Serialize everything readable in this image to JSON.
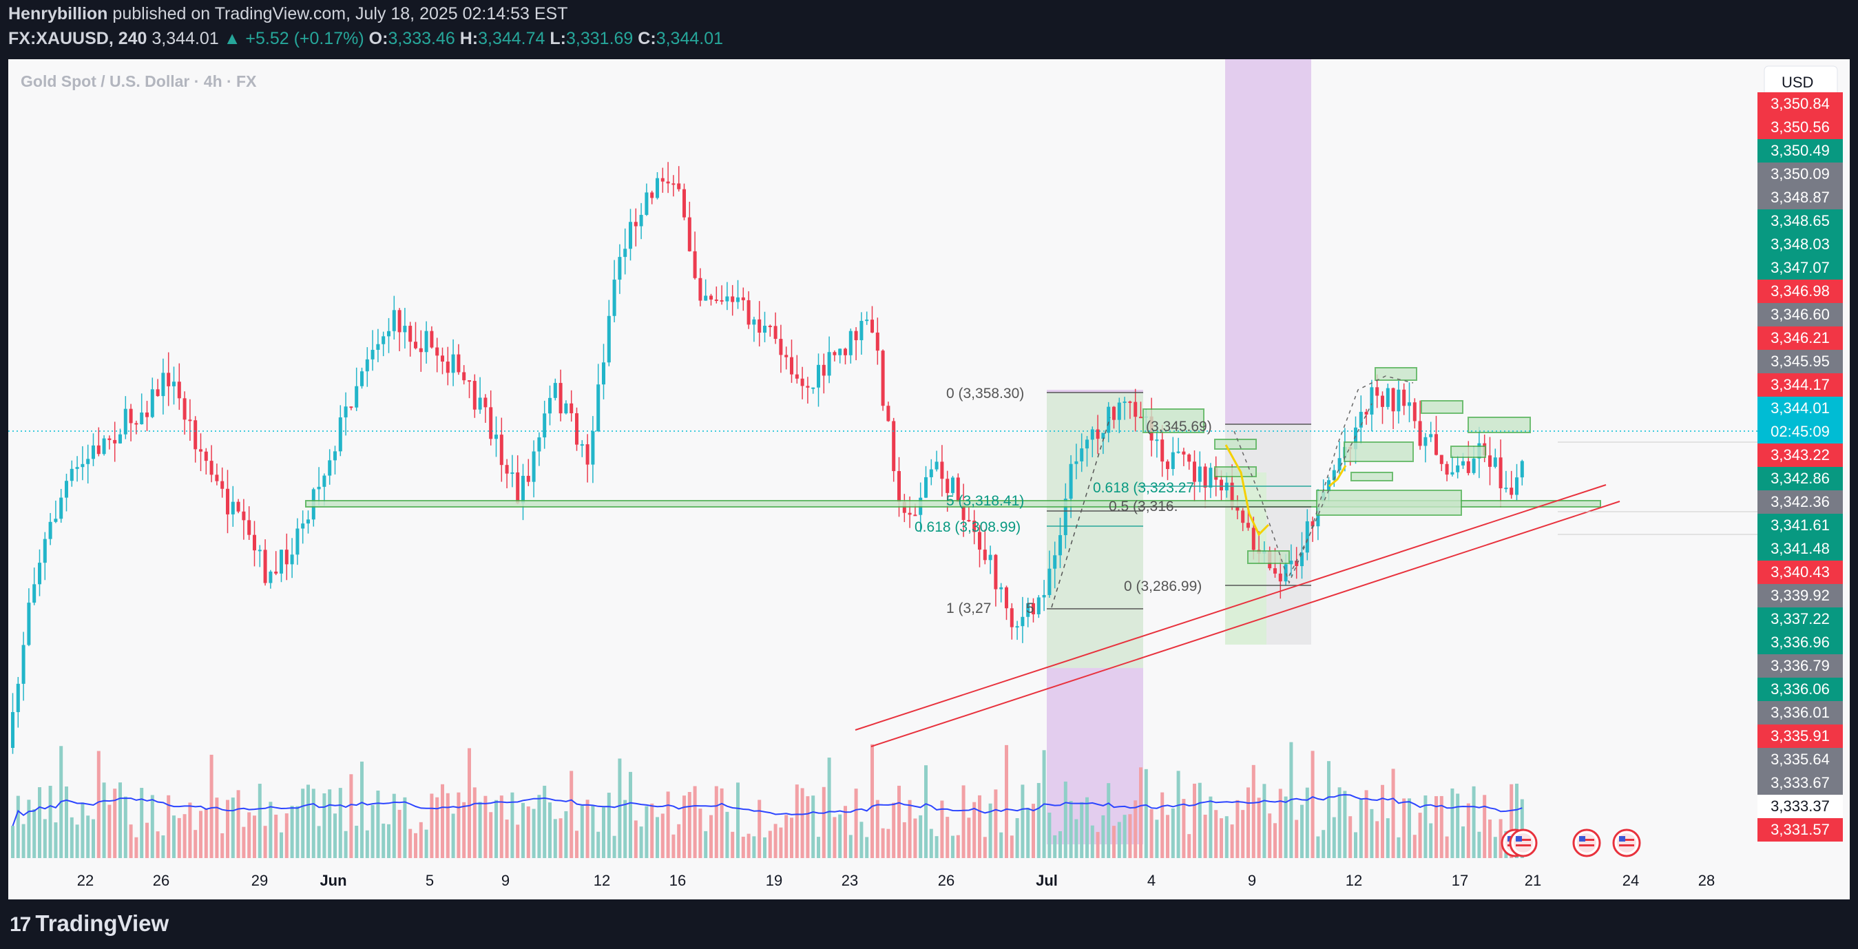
{
  "header": {
    "author": "Henrybillion",
    "published_text": "published on TradingView.com, July 18, 2025 02:14:53 EST",
    "symbol": "FX:XAUUSD, 240",
    "last": "3,344.01",
    "change": "▲ +5.52 (+0.17%)",
    "o_label": "O:",
    "o": "3,333.46",
    "h_label": "H:",
    "h": "3,344.74",
    "l_label": "L:",
    "l": "3,331.69",
    "c_label": "C:",
    "c": "3,344.01"
  },
  "chart": {
    "title": "Gold Spot / U.S. Dollar · 4h · FX",
    "currency_button": "USD",
    "colors": {
      "up": "#22b5c9",
      "down": "#ec3b4f",
      "vol_up": "#8fcfc7",
      "vol_down": "#f2a0a5",
      "ma": "#2b44ff",
      "zone": "#4caf50",
      "purple": "#e3cdee",
      "trend": "#e8323d"
    },
    "x_ticks": [
      {
        "label": "22",
        "bold": false
      },
      {
        "label": "26",
        "bold": false
      },
      {
        "label": "29",
        "bold": false
      },
      {
        "label": "Jun",
        "bold": true
      },
      {
        "label": "5",
        "bold": false
      },
      {
        "label": "9",
        "bold": false
      },
      {
        "label": "12",
        "bold": false
      },
      {
        "label": "16",
        "bold": false
      },
      {
        "label": "19",
        "bold": false
      },
      {
        "label": "23",
        "bold": false
      },
      {
        "label": "26",
        "bold": false
      },
      {
        "label": "Jul",
        "bold": true
      },
      {
        "label": "4",
        "bold": false
      },
      {
        "label": "9",
        "bold": false
      },
      {
        "label": "12",
        "bold": false
      },
      {
        "label": "17",
        "bold": false
      },
      {
        "label": "21",
        "bold": false
      },
      {
        "label": "24",
        "bold": false
      },
      {
        "label": "28",
        "bold": false
      }
    ],
    "price_labels": [
      {
        "text": "3,350.84",
        "color": "#f23645"
      },
      {
        "text": "3,350.56",
        "color": "#f23645"
      },
      {
        "text": "3,350.49",
        "color": "#089981"
      },
      {
        "text": "3,350.09",
        "color": "#787b86"
      },
      {
        "text": "3,348.87",
        "color": "#787b86"
      },
      {
        "text": "3,348.65",
        "color": "#089981"
      },
      {
        "text": "3,348.03",
        "color": "#089981"
      },
      {
        "text": "3,347.07",
        "color": "#089981"
      },
      {
        "text": "3,346.98",
        "color": "#f23645"
      },
      {
        "text": "3,346.60",
        "color": "#787b86"
      },
      {
        "text": "3,346.21",
        "color": "#f23645"
      },
      {
        "text": "3,345.95",
        "color": "#787b86"
      },
      {
        "text": "3,344.17",
        "color": "#f23645"
      },
      {
        "text": "3,344.01",
        "color": "#00bcd4"
      },
      {
        "text": "02:45:09",
        "color": "#00bcd4"
      },
      {
        "text": "3,343.22",
        "color": "#f23645"
      },
      {
        "text": "3,342.86",
        "color": "#089981"
      },
      {
        "text": "3,342.36",
        "color": "#787b86"
      },
      {
        "text": "3,341.61",
        "color": "#089981"
      },
      {
        "text": "3,341.48",
        "color": "#089981"
      },
      {
        "text": "3,340.43",
        "color": "#f23645"
      },
      {
        "text": "3,339.92",
        "color": "#787b86"
      },
      {
        "text": "3,337.22",
        "color": "#089981"
      },
      {
        "text": "3,336.96",
        "color": "#089981"
      },
      {
        "text": "3,336.79",
        "color": "#787b86"
      },
      {
        "text": "3,336.06",
        "color": "#089981"
      },
      {
        "text": "3,336.01",
        "color": "#787b86"
      },
      {
        "text": "3,335.91",
        "color": "#f23645"
      },
      {
        "text": "3,335.64",
        "color": "#787b86"
      },
      {
        "text": "3,333.67",
        "color": "#787b86"
      },
      {
        "text": "3,333.37",
        "color": "#ffffff"
      },
      {
        "text": "3,331.57",
        "color": "#f23645"
      }
    ],
    "fib_labels": {
      "a0": "0 (3,358.30)",
      "a1": "1 (3,27",
      "a1_tail": "5",
      "a618": "0.618 (3,308.99)",
      "a5": "5 (3,318.41)",
      "b345": "(3,345.69)",
      "b618": "0.618 (3,323.27",
      "b5": "0.5 (3,316.",
      "b0": "0 (3,286.99)"
    }
  },
  "footer": {
    "logo_mark": "17",
    "logo_text": "TradingView"
  }
}
